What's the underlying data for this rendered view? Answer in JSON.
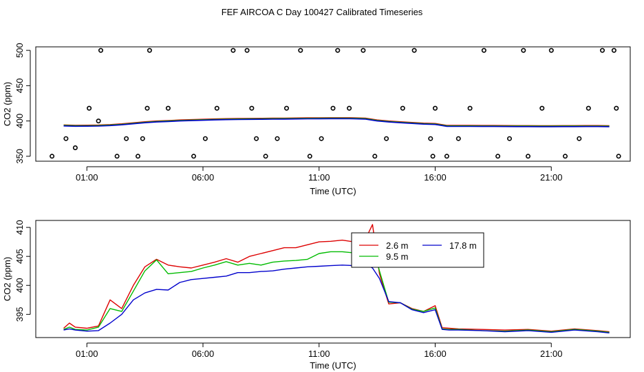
{
  "title": "FEF AIRCOA C  Day 100427  Calibrated Timeseries",
  "chart_data": [
    {
      "type": "scatter",
      "xlabel": "Time (UTC)",
      "ylabel": "CO2 (ppm)",
      "x_ticks": [
        "01:00",
        "06:00",
        "11:00",
        "16:00",
        "21:00"
      ],
      "x_tick_hours": [
        1,
        6,
        11,
        16,
        21
      ],
      "y_ticks": [
        350,
        400,
        450,
        500
      ],
      "xlim": [
        -1.2,
        24.4
      ],
      "ylim": [
        343,
        505
      ],
      "colors": {
        "line": "#0000cc",
        "line_red": "#dd0000",
        "line_green": "#00bb00"
      },
      "series": [
        {
          "type": "line",
          "values": {
            "x": [
              0,
              0.5,
              1,
              1.5,
              2,
              2.5,
              3,
              3.5,
              4,
              4.5,
              5,
              5.5,
              6,
              6.5,
              7,
              7.5,
              8,
              8.5,
              9,
              9.5,
              10,
              10.5,
              11,
              11.5,
              12,
              12.5,
              13,
              13.5,
              14,
              14.5,
              15,
              15.5,
              16,
              16.5,
              17,
              17.5,
              18,
              18.5,
              19,
              19.5,
              20,
              20.5,
              21,
              21.5,
              22,
              22.5,
              23,
              23.5
            ],
            "y": [
              393,
              392.5,
              392.6,
              392.8,
              393.5,
              394.5,
              396,
              397.5,
              398.5,
              399.2,
              400,
              400.5,
              401,
              401.5,
              401.8,
              402,
              402.2,
              402.3,
              402.5,
              402.6,
              402.8,
              403,
              403.1,
              403.2,
              403.2,
              403.1,
              402.5,
              400,
              398.5,
              397.5,
              396.5,
              395.5,
              395,
              392.4,
              392.3,
              392.3,
              392.2,
              392.2,
              392.1,
              392,
              392,
              391.9,
              391.9,
              392,
              392,
              392.1,
              392.1,
              391.9
            ]
          }
        },
        {
          "type": "points",
          "values": {
            "x": [
              -0.5,
              0.1,
              0.5,
              1.1,
              1.5,
              1.6,
              2.3,
              2.7,
              3.2,
              3.4,
              3.6,
              3.7,
              4.5,
              5.6,
              6.1,
              6.6,
              7.3,
              7.9,
              8.1,
              8.3,
              8.7,
              9.2,
              9.6,
              10.2,
              10.6,
              11.1,
              11.6,
              11.8,
              12.3,
              12.9,
              13.4,
              13.9,
              14.6,
              15.1,
              15.8,
              15.9,
              16.0,
              16.5,
              17.0,
              17.5,
              18.1,
              18.7,
              19.2,
              19.8,
              20.0,
              20.6,
              21.0,
              21.6,
              22.2,
              22.6,
              23.2,
              23.7,
              23.8,
              23.9
            ],
            "y": [
              350,
              375,
              362,
              418,
              400,
              500,
              350,
              375,
              350,
              375,
              418,
              500,
              418,
              350,
              375,
              418,
              500,
              500,
              418,
              375,
              350,
              375,
              418,
              500,
              350,
              375,
              418,
              500,
              418,
              500,
              350,
              375,
              418,
              500,
              375,
              350,
              418,
              350,
              375,
              418,
              500,
              350,
              375,
              500,
              350,
              418,
              500,
              350,
              375,
              418,
              500,
              500,
              418,
              350
            ]
          }
        }
      ]
    },
    {
      "type": "line",
      "xlabel": "Time (UTC)",
      "ylabel": "CO2 (ppm)",
      "x_ticks": [
        "01:00",
        "06:00",
        "11:00",
        "16:00",
        "21:00"
      ],
      "x_tick_hours": [
        1,
        6,
        11,
        16,
        21
      ],
      "y_ticks": [
        395,
        400,
        405,
        410
      ],
      "xlim": [
        -1.2,
        24.4
      ],
      "ylim": [
        391.0,
        411.2
      ],
      "legend_position": "top-right",
      "series": [
        {
          "name": "2.6 m",
          "color": "#dd0000",
          "x": [
            0,
            0.25,
            0.5,
            1,
            1.5,
            2,
            2.5,
            3,
            3.5,
            4,
            4.5,
            5,
            5.5,
            6,
            6.5,
            7,
            7.5,
            8,
            8.5,
            9,
            9.5,
            10,
            10.5,
            11,
            11.5,
            12,
            12.5,
            13,
            13.3,
            13.6,
            14,
            14.5,
            15,
            15.5,
            16,
            16.3,
            16.6,
            17,
            18,
            19,
            20,
            21,
            22,
            23,
            23.5
          ],
          "y": [
            392.6,
            393.5,
            392.8,
            392.6,
            393,
            397.5,
            396,
            400,
            403.2,
            404.5,
            403.5,
            403.2,
            403,
            403.5,
            404,
            404.6,
            404,
            405,
            405.5,
            406,
            406.5,
            406.5,
            407,
            407.5,
            407.6,
            407.8,
            407.5,
            408,
            410.5,
            402,
            396.8,
            397,
            396,
            395.5,
            396.5,
            392.7,
            392.6,
            392.5,
            392.4,
            392.3,
            392.4,
            392.1,
            392.5,
            392.2,
            392.0
          ]
        },
        {
          "name": "9.5 m",
          "color": "#00bb00",
          "x": [
            0,
            0.25,
            0.5,
            1,
            1.5,
            2,
            2.5,
            3,
            3.5,
            4,
            4.5,
            5,
            5.5,
            6,
            6.5,
            7,
            7.5,
            8,
            8.5,
            9,
            9.5,
            10,
            10.5,
            11,
            11.5,
            12,
            12.5,
            13,
            13.3,
            13.6,
            14,
            14.5,
            15,
            15.5,
            16,
            16.3,
            16.6,
            17,
            18,
            19,
            20,
            21,
            22,
            23,
            23.5
          ],
          "y": [
            392.4,
            392.8,
            392.4,
            392.3,
            392.8,
            396,
            395.5,
            399,
            402.5,
            404.4,
            402,
            402.2,
            402.4,
            403,
            403.5,
            404.1,
            403.5,
            403.8,
            403.5,
            404,
            404.2,
            404.3,
            404.5,
            405.5,
            405.8,
            405.8,
            405.6,
            406,
            406.9,
            402.5,
            397.1,
            397,
            395.9,
            395.5,
            396.1,
            392.5,
            392.4,
            392.4,
            392.2,
            392.1,
            392.3,
            392.0,
            392.4,
            392.1,
            391.9
          ]
        },
        {
          "name": "17.8 m",
          "color": "#0000cc",
          "x": [
            0,
            0.25,
            0.5,
            1,
            1.5,
            2,
            2.5,
            3,
            3.5,
            4,
            4.5,
            5,
            5.5,
            6,
            6.5,
            7,
            7.5,
            8,
            8.5,
            9,
            9.5,
            10,
            10.5,
            11,
            11.5,
            12,
            12.5,
            13,
            13.3,
            13.6,
            14,
            14.5,
            15,
            15.5,
            16,
            16.3,
            16.6,
            17,
            18,
            19,
            20,
            21,
            22,
            23,
            23.5
          ],
          "y": [
            392.3,
            392.5,
            392.3,
            392.1,
            392.2,
            393.5,
            395,
            397.5,
            398.7,
            399.3,
            399.2,
            400.5,
            401,
            401.2,
            401.4,
            401.6,
            402.2,
            402.2,
            402.4,
            402.5,
            402.8,
            403,
            403.2,
            403.3,
            403.4,
            403.5,
            403.4,
            403.6,
            403,
            401.2,
            397.2,
            397,
            395.8,
            395.3,
            395.8,
            392.4,
            392.3,
            392.3,
            392.2,
            392.0,
            392.2,
            391.9,
            392.3,
            392.0,
            391.8
          ]
        }
      ]
    }
  ]
}
